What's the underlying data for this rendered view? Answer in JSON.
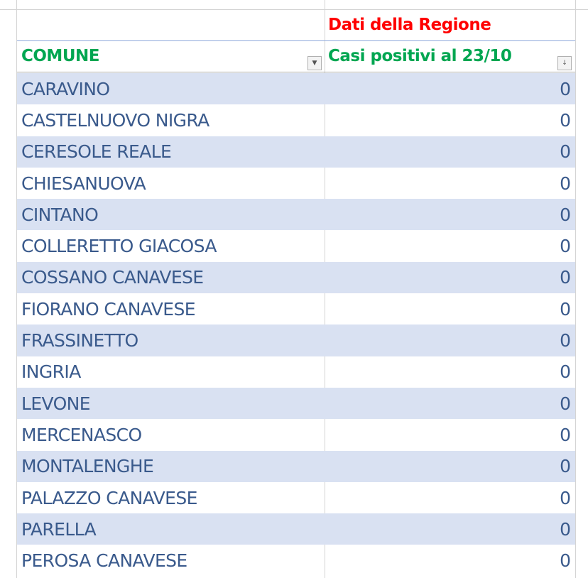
{
  "header": {
    "group_title": "Dati della Regione",
    "col_comune": "COMUNE",
    "col_casi": "Casi positivi al 23/10"
  },
  "colors": {
    "header_red": "#ff0000",
    "header_green": "#00a651",
    "text_blue": "#3a5a8c",
    "band": "#d9e1f2"
  },
  "rows": [
    {
      "comune": "CARAVINO",
      "casi": "0"
    },
    {
      "comune": "CASTELNUOVO NIGRA",
      "casi": "0"
    },
    {
      "comune": "CERESOLE REALE",
      "casi": "0"
    },
    {
      "comune": "CHIESANUOVA",
      "casi": "0"
    },
    {
      "comune": "CINTANO",
      "casi": "0"
    },
    {
      "comune": "COLLERETTO GIACOSA",
      "casi": "0"
    },
    {
      "comune": "COSSANO CANAVESE",
      "casi": "0"
    },
    {
      "comune": "FIORANO CANAVESE",
      "casi": "0"
    },
    {
      "comune": "FRASSINETTO",
      "casi": "0"
    },
    {
      "comune": "INGRIA",
      "casi": "0"
    },
    {
      "comune": "LEVONE",
      "casi": "0"
    },
    {
      "comune": "MERCENASCO",
      "casi": "0"
    },
    {
      "comune": "MONTALENGHE",
      "casi": "0"
    },
    {
      "comune": "PALAZZO CANAVESE",
      "casi": "0"
    },
    {
      "comune": "PARELLA",
      "casi": "0"
    },
    {
      "comune": "PEROSA CANAVESE",
      "casi": "0"
    }
  ]
}
